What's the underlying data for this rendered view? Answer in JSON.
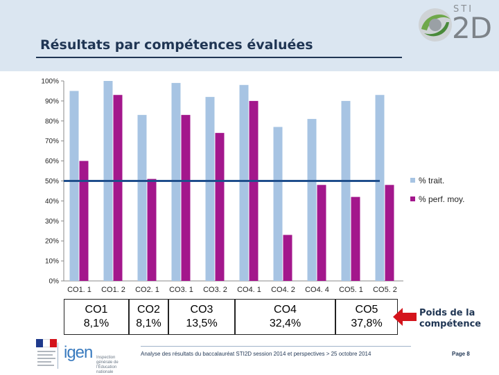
{
  "header": {
    "title": "Résultats par compétences évaluées",
    "logo": {
      "top_text": "STI",
      "main_text": "2D"
    }
  },
  "chart_data": {
    "type": "bar",
    "categories": [
      "CO1.1",
      "CO1.2",
      "CO2.1",
      "CO3.1",
      "CO3.2",
      "CO4.1",
      "CO4.2",
      "CO4.4",
      "CO5.1",
      "CO5.2"
    ],
    "series": [
      {
        "name": "% trait.",
        "color": "#a7c4e3",
        "values": [
          95,
          100,
          83,
          99,
          92,
          98,
          77,
          81,
          90,
          93
        ]
      },
      {
        "name": "% perf. moy.",
        "color": "#a3178c",
        "values": [
          60,
          93,
          51,
          83,
          74,
          90,
          23,
          48,
          42,
          48
        ]
      }
    ],
    "reference_line": {
      "value": 50,
      "color": "#1f4e8c"
    },
    "y_ticks": [
      "0%",
      "10%",
      "20%",
      "30%",
      "40%",
      "50%",
      "60%",
      "70%",
      "80%",
      "90%",
      "100%"
    ],
    "ylim": [
      0,
      100
    ],
    "legend_position": "right",
    "title": "",
    "xlabel": "",
    "ylabel": ""
  },
  "competence_groups": [
    {
      "name": "CO1",
      "weight": "8,1%"
    },
    {
      "name": "CO2",
      "weight": "8,1%"
    },
    {
      "name": "CO3",
      "weight": "13,5%"
    },
    {
      "name": "CO4",
      "weight": "32,4%"
    },
    {
      "name": "CO5",
      "weight": "37,8%"
    }
  ],
  "weight_label": "Poids de la compétence",
  "footer": {
    "org": "igen",
    "org_subtitle": "Inspection générale de l'Éducation nationale",
    "text": "Analyse des résultats du baccalauréat STI2D session 2014 et perspectives > 25 octobre 2014",
    "page": "Page 8"
  }
}
